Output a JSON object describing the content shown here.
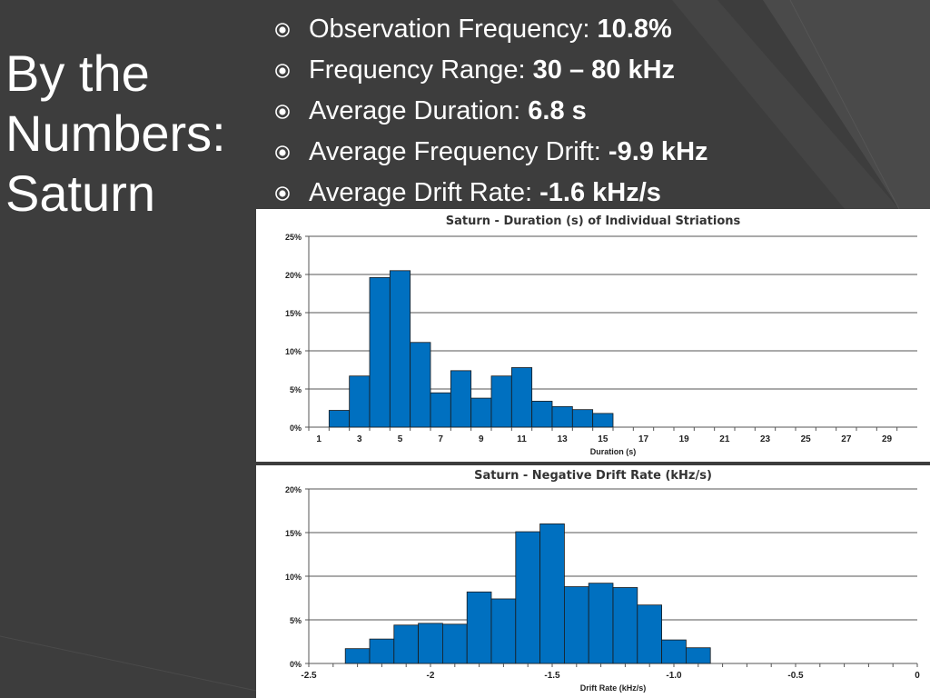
{
  "slide": {
    "title_lines": [
      "By the",
      "Numbers:",
      "Saturn"
    ],
    "bullet_icon": "circle-bullet-icon",
    "bullets": [
      {
        "label": "Observation Frequency:",
        "value": "10.8%"
      },
      {
        "label": "Frequency Range:",
        "value": "30 – 80 kHz"
      },
      {
        "label": "Average Duration:",
        "value": "6.8 s"
      },
      {
        "label": "Average Frequency Drift:",
        "value": "-9.9 kHz"
      },
      {
        "label": "Average Drift Rate:",
        "value": "-1.6 kHz/s"
      }
    ],
    "colors": {
      "background": "#3d3d3d",
      "text": "#ffffff",
      "bar": "#0070c0",
      "bar_outline": "#1a1a1a"
    }
  },
  "chart_data": [
    {
      "type": "bar",
      "title": "Saturn - Duration (s) of Individual Striations",
      "xlabel": "Duration (s)",
      "ylabel": "",
      "categories": [
        1,
        2,
        3,
        4,
        5,
        6,
        7,
        8,
        9,
        10,
        11,
        12,
        13,
        14,
        15,
        16,
        17,
        18,
        19,
        20,
        21,
        22,
        23,
        24,
        25,
        26,
        27,
        28,
        29,
        30
      ],
      "x_tick_labels": [
        "1",
        "3",
        "5",
        "7",
        "9",
        "11",
        "13",
        "15",
        "17",
        "19",
        "21",
        "23",
        "25",
        "27",
        "29"
      ],
      "values": [
        0,
        2.2,
        6.7,
        19.6,
        20.5,
        11.1,
        4.5,
        7.4,
        3.8,
        6.7,
        7.8,
        3.4,
        2.7,
        2.3,
        1.8,
        0,
        0,
        0,
        0,
        0,
        0,
        0,
        0,
        0,
        0,
        0,
        0,
        0,
        0,
        0
      ],
      "y_ticks": [
        "0%",
        "5%",
        "10%",
        "15%",
        "20%",
        "25%"
      ],
      "ylim": [
        0,
        25
      ],
      "grid": true
    },
    {
      "type": "bar",
      "title": "Saturn - Negative Drift Rate (kHz/s)",
      "xlabel": "Drift Rate (kHz/s)",
      "ylabel": "",
      "x_tick_labels": [
        "-2.5",
        "-2",
        "-1.5",
        "-1.0",
        "-0.5",
        "0"
      ],
      "xlim": [
        -2.5,
        0
      ],
      "bin_width": 0.1,
      "bin_starts": [
        -2.35,
        -2.25,
        -2.15,
        -2.05,
        -1.95,
        -1.85,
        -1.75,
        -1.65,
        -1.55,
        -1.45,
        -1.35,
        -1.25,
        -1.15,
        -1.05,
        -0.95
      ],
      "values": [
        1.7,
        2.8,
        4.4,
        4.6,
        4.5,
        8.2,
        7.4,
        15.1,
        16.0,
        8.8,
        9.2,
        8.7,
        6.7,
        2.7,
        1.8
      ],
      "y_ticks": [
        "0%",
        "5%",
        "10%",
        "15%",
        "20%"
      ],
      "ylim": [
        0,
        20
      ],
      "grid": true
    }
  ]
}
